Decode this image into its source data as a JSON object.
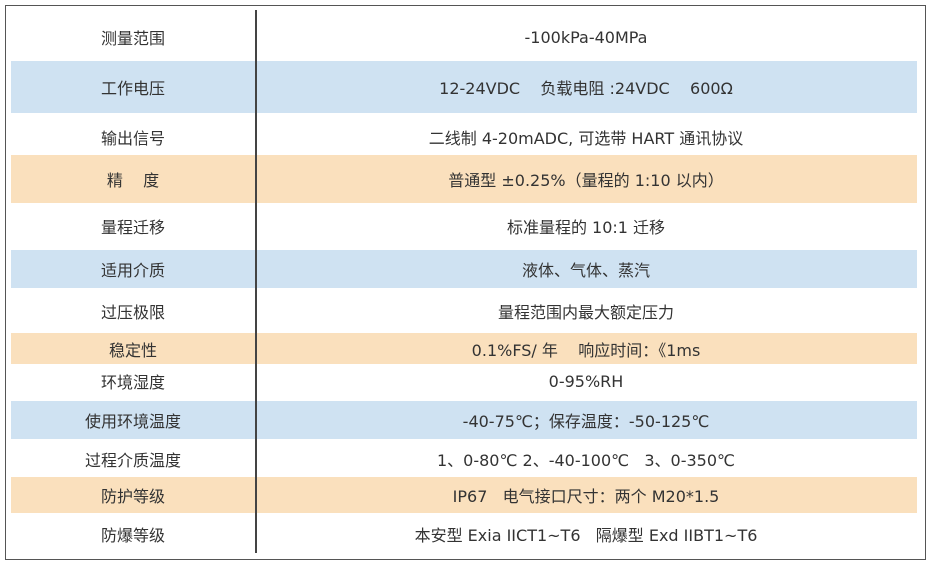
{
  "spec_table": {
    "rows": [
      {
        "label": "测量范围",
        "value": "-100kPa-40MPa"
      },
      {
        "label": "工作电压",
        "value": "12-24VDC    负载电阻 :24VDC    600Ω"
      },
      {
        "label": "输出信号",
        "value": "二线制 4-20mADC, 可选带 HART 通讯协议"
      },
      {
        "label": "精    度",
        "value": "普通型 ±0.25%（量程的 1:10 以内）"
      },
      {
        "label": "量程迁移",
        "value": "标准量程的 10:1 迁移"
      },
      {
        "label": "适用介质",
        "value": "液体、气体、蒸汽"
      },
      {
        "label": "过压极限",
        "value": "量程范围内最大额定压力"
      },
      {
        "label": "稳定性",
        "value": "0.1%FS/ 年    响应时间：《1ms"
      },
      {
        "label": "环境湿度",
        "value": "0-95%RH"
      },
      {
        "label": "使用环境温度",
        "value": "-40-75℃；保存温度：-50-125℃"
      },
      {
        "label": "过程介质温度",
        "value": "1、0-80℃ 2、-40-100℃   3、0-350℃"
      },
      {
        "label": "防护等级",
        "value": "IP67   电气接口尺寸：两个 M20*1.5"
      },
      {
        "label": "防爆等级",
        "value": "本安型 Exia IICT1~T6   隔爆型 Exd IIBT1~T6"
      }
    ]
  },
  "colors": {
    "blue_band": "#cfe2f2",
    "orange_band": "#fae0bd",
    "border": "#555555",
    "text": "#333333"
  }
}
